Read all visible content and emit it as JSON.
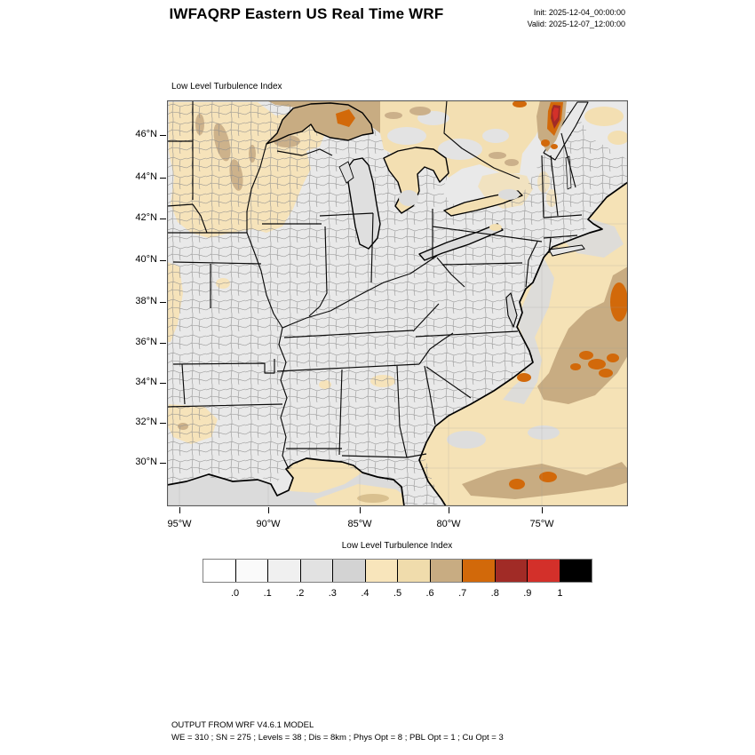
{
  "header": {
    "title": "IWFAQRP Eastern US Real Time WRF",
    "init_line": "Init: 2025-12-04_00:00:00",
    "valid_line": "Valid: 2025-12-07_12:00:00"
  },
  "map": {
    "title": "Low Level Turbulence Index",
    "lat_labels": [
      "46°N",
      "44°N",
      "42°N",
      "40°N",
      "38°N",
      "36°N",
      "34°N",
      "32°N",
      "30°N"
    ],
    "lon_labels": [
      "95°W",
      "90°W",
      "85°W",
      "80°W",
      "75°W"
    ]
  },
  "colorbar": {
    "title": "Low Level Turbulence Index",
    "tick_labels": [
      ".0",
      ".1",
      ".2",
      ".3",
      ".4",
      ".5",
      ".6",
      ".7",
      ".8",
      ".9",
      "1"
    ],
    "colors": [
      "#FFFFFF",
      "#FAFAFA",
      "#F0F0F0",
      "#E2E2E2",
      "#D3D3D3",
      "#F8E5BB",
      "#F0DCAC",
      "#C8AC82",
      "#D2690A",
      "#A12B26",
      "#D3302A",
      "#000000"
    ]
  },
  "palette": {
    "ocean_low": "#F5E2B6",
    "land_low": "#E9E9E9",
    "nearshore_gray": "#DBDBDB",
    "turb_06": "#C8AC82",
    "turb_07": "#D2690A",
    "turb_08": "#A12B26",
    "turb_09": "#D3302A"
  },
  "footer": {
    "line1": "OUTPUT FROM WRF V4.6.1 MODEL",
    "line2": "WE = 310 ; SN = 275 ; Levels = 38 ; Dis = 8km ; Phys Opt = 8 ; PBL Opt = 1 ; Cu Opt = 3"
  }
}
